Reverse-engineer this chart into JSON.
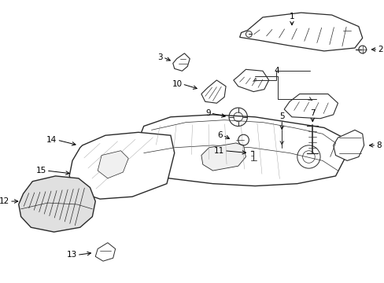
{
  "bg_color": "#ffffff",
  "line_color": "#2a2a2a",
  "text_color": "#000000",
  "fig_width": 4.89,
  "fig_height": 3.6,
  "dpi": 100
}
